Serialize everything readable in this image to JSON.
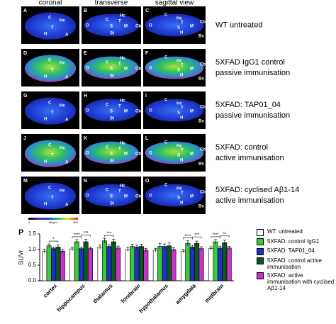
{
  "figure": {
    "columns": [
      {
        "title": "coronal",
        "labels": [
          "C",
          "Hc",
          "T",
          "H",
          "A"
        ]
      },
      {
        "title": "transverse",
        "labels": [
          "Hc",
          "C",
          "O",
          "S",
          "M",
          "Cb",
          "St",
          "T"
        ]
      },
      {
        "title": "sagittal view",
        "labels": [
          "C",
          "O",
          "Hc",
          "T",
          "S",
          "H",
          "M",
          "Cb",
          "Bs"
        ]
      }
    ],
    "rows": [
      {
        "letters": [
          "A",
          "B",
          "C"
        ],
        "label": [
          "WT untreated"
        ]
      },
      {
        "letters": [
          "D",
          "E",
          "F"
        ],
        "label": [
          "5XFAD IgG1 control",
          "passive immunisation"
        ]
      },
      {
        "letters": [
          "G",
          "H",
          "I"
        ],
        "label": [
          "5XFAD: TAP01_04",
          "passive immunisation"
        ]
      },
      {
        "letters": [
          "J",
          "K",
          "L"
        ],
        "label": [
          "5XFAD: control",
          "active immunisation"
        ]
      },
      {
        "letters": [
          "M",
          "N",
          "O"
        ],
        "label": [
          "5XFAD: cyclised Aβ1-14",
          "active immunisation"
        ]
      }
    ],
    "colorbar": {
      "label": "kBq/cc",
      "ticks": [
        0,
        800
      ]
    },
    "chart_letter": "P"
  },
  "chart_data": {
    "type": "bar",
    "y_label": "SUVr",
    "categories": [
      "cortex",
      "hippocampus",
      "thalamus",
      "forebrain",
      "hypothalamus",
      "amygdala",
      "midbrain"
    ],
    "series": [
      {
        "name": "WT: untreated",
        "color": "#ffffff",
        "values": [
          0.95,
          1.02,
          1.08,
          1.0,
          0.98,
          0.95,
          1.03
        ],
        "errors": [
          0.06,
          0.06,
          0.07,
          0.07,
          0.06,
          0.05,
          0.06
        ]
      },
      {
        "name": "5XFAD: control IgG1",
        "color": "#3cc83c",
        "values": [
          1.12,
          1.25,
          1.28,
          1.1,
          1.1,
          1.2,
          1.25
        ],
        "errors": [
          0.06,
          0.07,
          0.08,
          0.07,
          0.1,
          0.08,
          0.07
        ]
      },
      {
        "name": "5XFAD: TAP01_04",
        "color": "#1f2fc8",
        "values": [
          1.03,
          1.03,
          1.1,
          1.08,
          1.1,
          1.08,
          1.05
        ],
        "errors": [
          0.05,
          0.05,
          0.06,
          0.06,
          0.08,
          0.06,
          0.06
        ]
      },
      {
        "name": "5XFAD: control active immunisation",
        "color": "#0b5a1a",
        "values": [
          1.08,
          1.25,
          1.25,
          1.1,
          1.12,
          1.2,
          1.22
        ],
        "errors": [
          0.07,
          0.08,
          0.08,
          0.07,
          0.09,
          0.07,
          0.08
        ]
      },
      {
        "name": "5XFAD: active immunisation with cyclised Aβ1-14",
        "color": "#c832c8",
        "values": [
          0.95,
          1.03,
          1.05,
          0.98,
          1.0,
          1.03,
          1.05
        ],
        "errors": [
          0.05,
          0.05,
          0.06,
          0.06,
          0.06,
          0.06,
          0.05
        ]
      }
    ],
    "significance": [
      [
        "*"
      ],
      [
        "****",
        "***"
      ],
      [
        "***"
      ],
      [],
      [],
      [
        "****",
        "***"
      ],
      [
        "****",
        "**"
      ]
    ],
    "ylim": [
      0,
      1.5
    ],
    "yticks": [
      {
        "value": 0,
        "label": "0.0"
      },
      {
        "value": 0.5,
        "label": "0.5"
      },
      {
        "value": 1,
        "label": "1.0"
      },
      {
        "value": 1.5,
        "label": "1.5"
      }
    ]
  }
}
